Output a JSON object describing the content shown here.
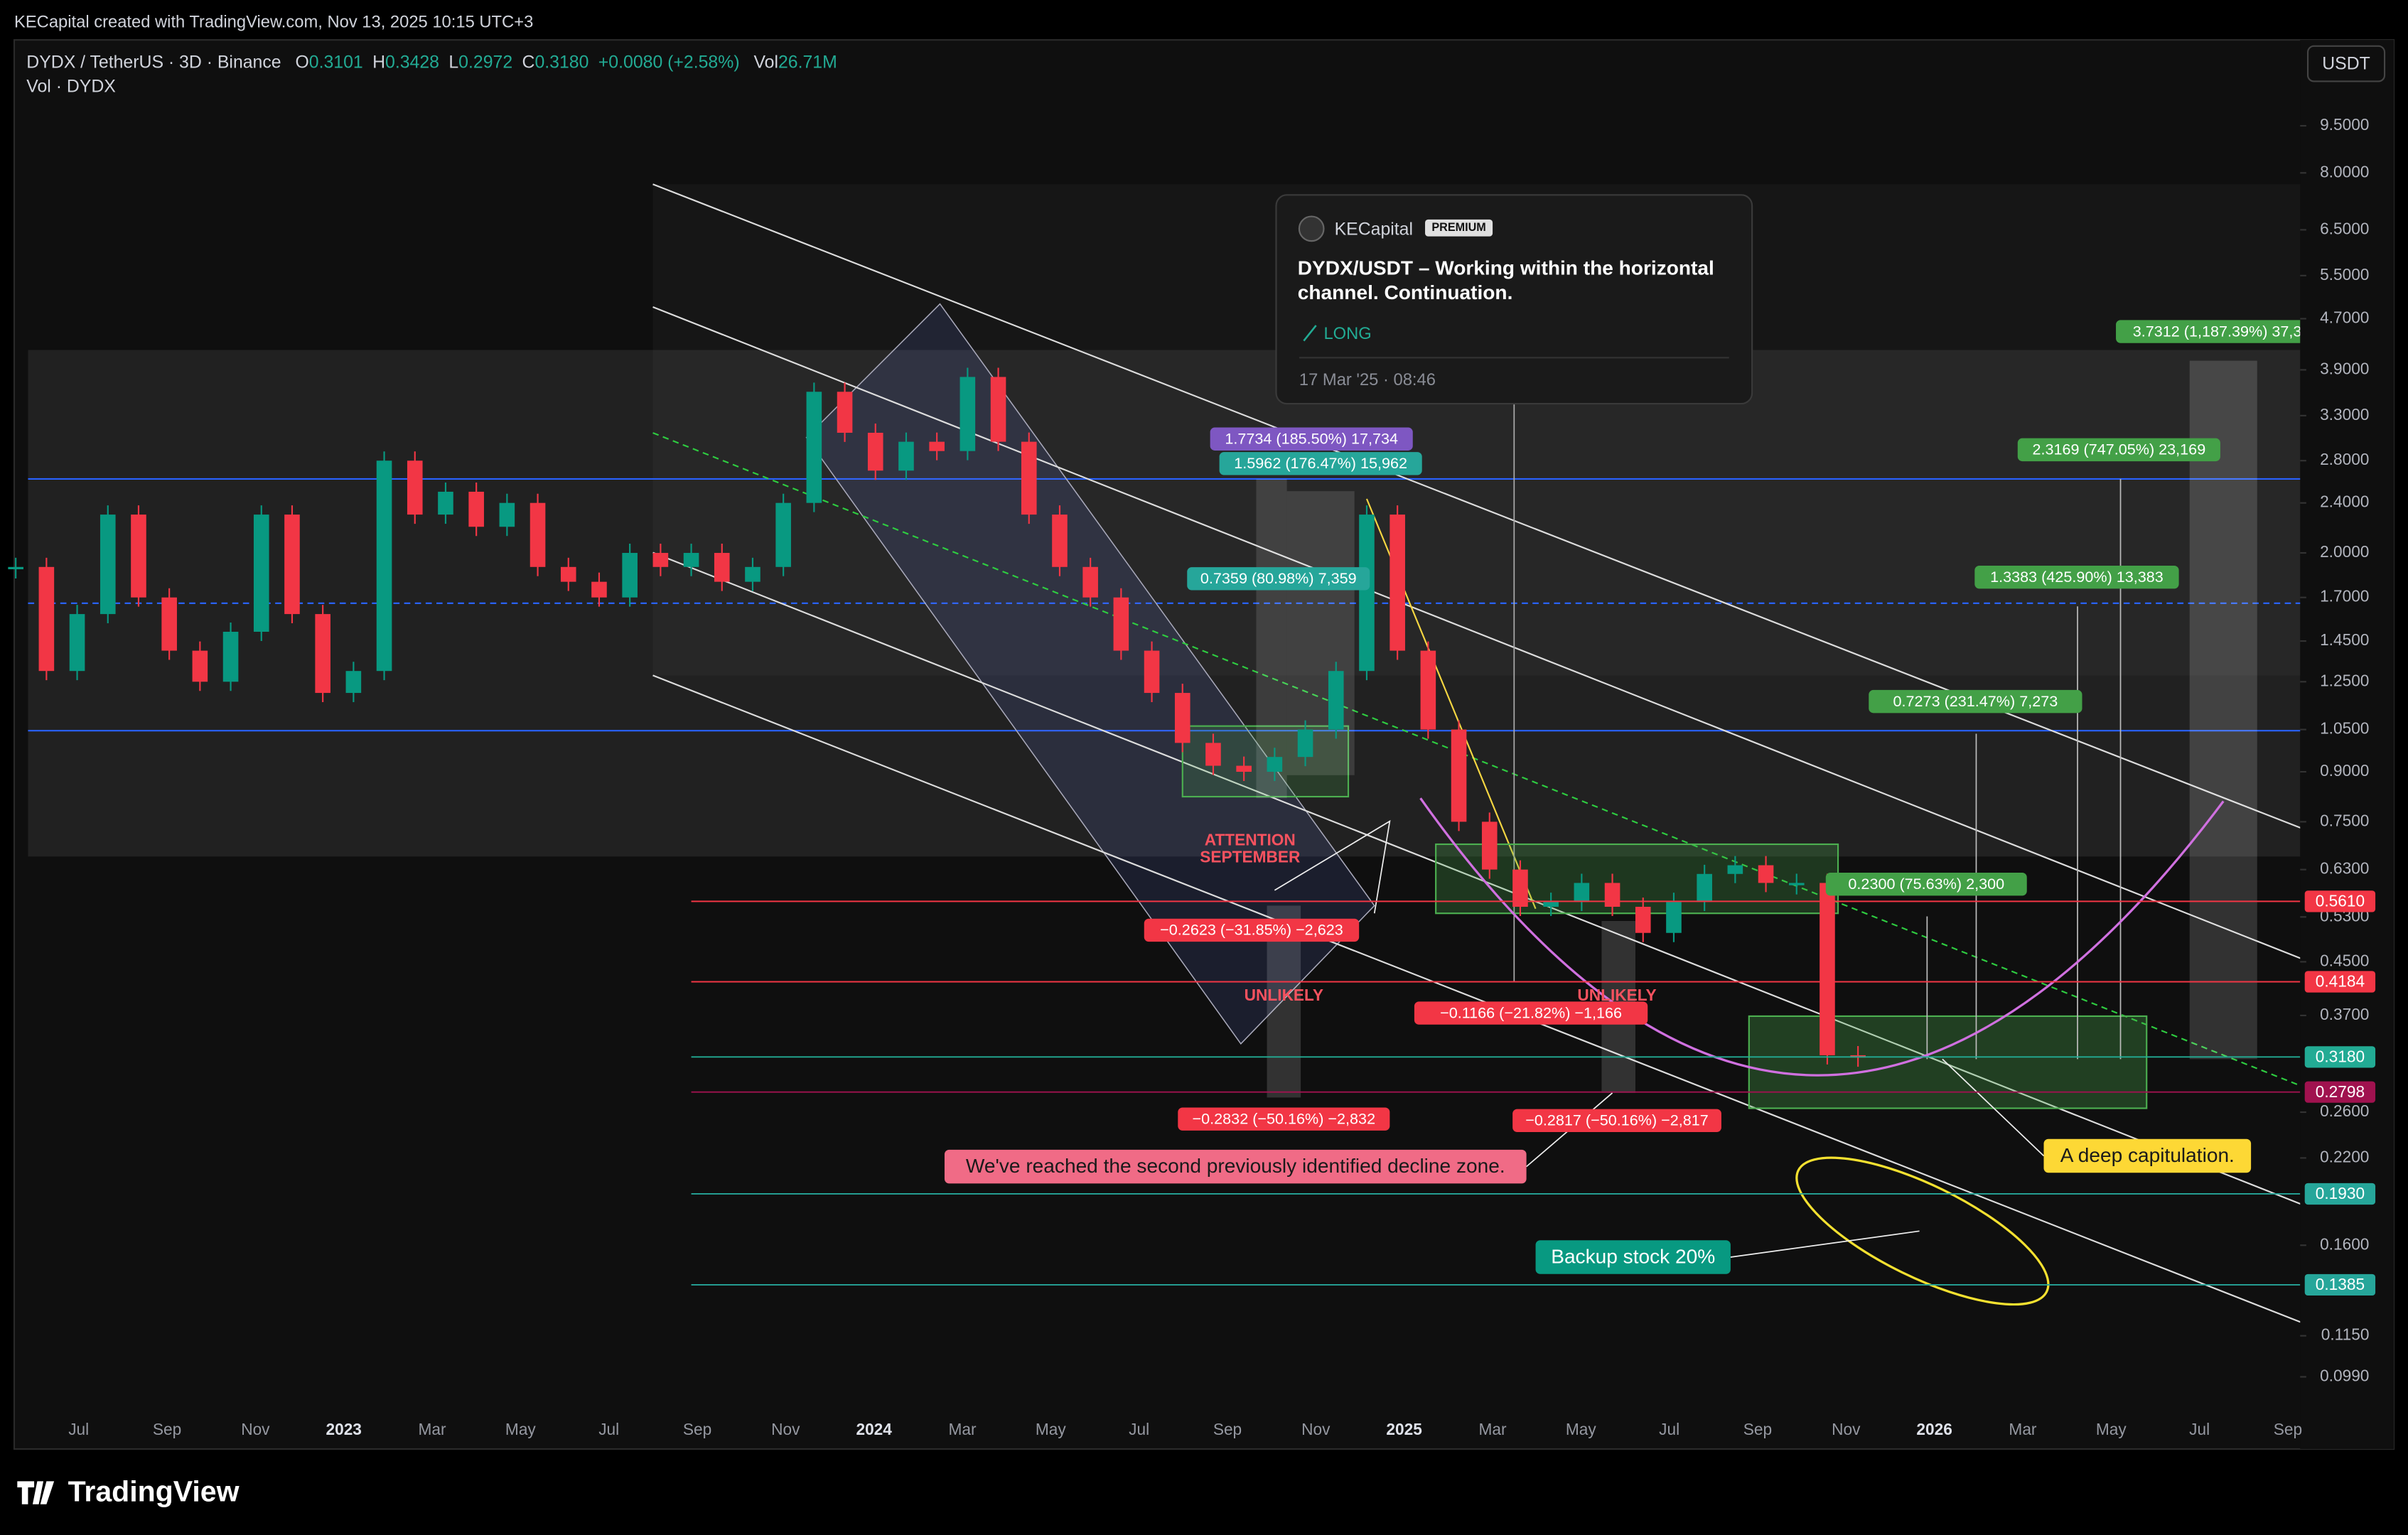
{
  "header": {
    "credit": "KECapital created with TradingView.com, Nov 13, 2025 10:15 UTC+3"
  },
  "legend": {
    "symbol": "DYDX / TetherUS · 3D · Binance",
    "ohlc": [
      {
        "label": "O",
        "value": "0.3101"
      },
      {
        "label": "H",
        "value": "0.3428"
      },
      {
        "label": "L",
        "value": "0.2972"
      },
      {
        "label": "C",
        "value": "0.3180"
      }
    ],
    "change": "+0.0080 (+2.58%)",
    "volume_label": "Vol",
    "volume": "26.71M",
    "indicator": "Vol · DYDX"
  },
  "currency_button": "USDT",
  "chart_data": {
    "type": "candlestick",
    "log_scale": true,
    "up_color": "#089981",
    "down_color": "#f23645",
    "ylim": [
      0.088,
      12.85
    ],
    "yticks": [
      {
        "value": 9.5,
        "label": "9.5000"
      },
      {
        "value": 8,
        "label": "8.0000"
      },
      {
        "value": 6.5,
        "label": "6.5000"
      },
      {
        "value": 5.5,
        "label": "5.5000"
      },
      {
        "value": 4.7,
        "label": "4.7000"
      },
      {
        "value": 3.9,
        "label": "3.9000"
      },
      {
        "value": 3.3,
        "label": "3.3000"
      },
      {
        "value": 2.8,
        "label": "2.8000"
      },
      {
        "value": 2.4,
        "label": "2.4000"
      },
      {
        "value": 2,
        "label": "2.0000"
      },
      {
        "value": 1.7,
        "label": "1.7000"
      },
      {
        "value": 1.45,
        "label": "1.4500"
      },
      {
        "value": 1.25,
        "label": "1.2500"
      },
      {
        "value": 1.05,
        "label": "1.0500"
      },
      {
        "value": 0.9,
        "label": "0.9000"
      },
      {
        "value": 0.75,
        "label": "0.7500"
      },
      {
        "value": 0.63,
        "label": "0.6300"
      },
      {
        "value": 0.53,
        "label": "0.5300"
      },
      {
        "value": 0.45,
        "label": "0.4500"
      },
      {
        "value": 0.37,
        "label": "0.3700"
      },
      {
        "value": 0.26,
        "label": "0.2600"
      },
      {
        "value": 0.22,
        "label": "0.2200"
      },
      {
        "value": 0.16,
        "label": "0.1600"
      },
      {
        "value": 0.115,
        "label": "0.1150"
      },
      {
        "value": 0.099,
        "label": "0.0990"
      }
    ],
    "time_labels": [
      "Jul",
      "Sep",
      "Nov",
      "2023",
      "Mar",
      "May",
      "Jul",
      "Sep",
      "Nov",
      "2024",
      "Mar",
      "May",
      "Jul",
      "Sep",
      "Nov",
      "2025",
      "Mar",
      "May",
      "Jul",
      "Sep",
      "Nov",
      "2026",
      "Mar",
      "May",
      "Jul",
      "Sep"
    ],
    "values": [
      1.9,
      1.3,
      1.6,
      2.3,
      1.7,
      1.4,
      1.25,
      1.5,
      2.3,
      1.6,
      1.2,
      1.3,
      2.8,
      2.3,
      2.5,
      2.2,
      2.4,
      1.9,
      1.8,
      1.7,
      2.0,
      1.9,
      2.0,
      1.8,
      1.9,
      2.4,
      3.6,
      3.1,
      2.7,
      3.0,
      2.9,
      3.8,
      3.0,
      2.3,
      1.9,
      1.7,
      1.4,
      1.2,
      1.0,
      0.92,
      0.9,
      0.95,
      1.05,
      1.3,
      2.3,
      1.4,
      1.05,
      0.75,
      0.63,
      0.55,
      0.56,
      0.6,
      0.55,
      0.5,
      0.56,
      0.62,
      0.64,
      0.6,
      0.6,
      0.32,
      0.318
    ],
    "price_lines": [
      {
        "value": 0.561,
        "label": "0.5610",
        "color": "#f23645"
      },
      {
        "value": 0.4184,
        "label": "0.4184",
        "color": "#f23645"
      },
      {
        "value": 0.318,
        "label": "0.3180",
        "color": "#22ab94"
      },
      {
        "value": 0.2798,
        "label": "0.2798",
        "color": "#a0124f"
      },
      {
        "value": 0.193,
        "label": "0.1930",
        "color": "#26a69a"
      },
      {
        "value": 0.1385,
        "label": "0.1385",
        "color": "#26a69a"
      }
    ]
  },
  "annotations": [
    {
      "text": "1.7734 (185.50%) 17,734",
      "color": "#7e57c2"
    },
    {
      "text": "1.5962 (176.47%) 15,962",
      "color": "#26a69a"
    },
    {
      "text": "0.7359 (80.98%) 7,359",
      "color": "#26a69a"
    },
    {
      "text": "ATTENTION",
      "color": "#f7525f"
    },
    {
      "text": "SEPTEMBER",
      "color": "#f7525f"
    },
    {
      "text": "−0.2623 (−31.85%) −2,623",
      "color": "#f23645"
    },
    {
      "text": "UNLIKELY",
      "color": "#f7525f"
    },
    {
      "text": "−0.2832 (−50.16%) −2,832",
      "color": "#f23645"
    },
    {
      "text": "−0.1166 (−21.82%) −1,166",
      "color": "#f23645"
    },
    {
      "text": "UNLIKELY",
      "color": "#f7525f"
    },
    {
      "text": "−0.2817 (−50.16%) −2,817",
      "color": "#f23645"
    },
    {
      "text": "We've reached the second previously identified decline zone.",
      "color": "#f06b86"
    },
    {
      "text": "0.2300 (75.63%) 2,300",
      "color": "#43a047"
    },
    {
      "text": "0.7273 (231.47%) 7,273",
      "color": "#43a047"
    },
    {
      "text": "1.3383 (425.90%) 13,383",
      "color": "#43a047"
    },
    {
      "text": "2.3169 (747.05%) 23,169",
      "color": "#43a047"
    },
    {
      "text": "3.7312 (1,187.39%) 37,3",
      "color": "#43a047"
    },
    {
      "text": "A deep capitulation.",
      "color": "#fdd835"
    },
    {
      "text": "Backup stock 20%",
      "color": "#089981"
    }
  ],
  "idea_popup": {
    "author": "KECapital",
    "badge": "PREMIUM",
    "title": "DYDX/USDT – Working within the horizontal channel. Continuation.",
    "direction": "LONG",
    "date": "17 Mar '25 · 08:46"
  },
  "footer": {
    "brand": "TradingView"
  }
}
